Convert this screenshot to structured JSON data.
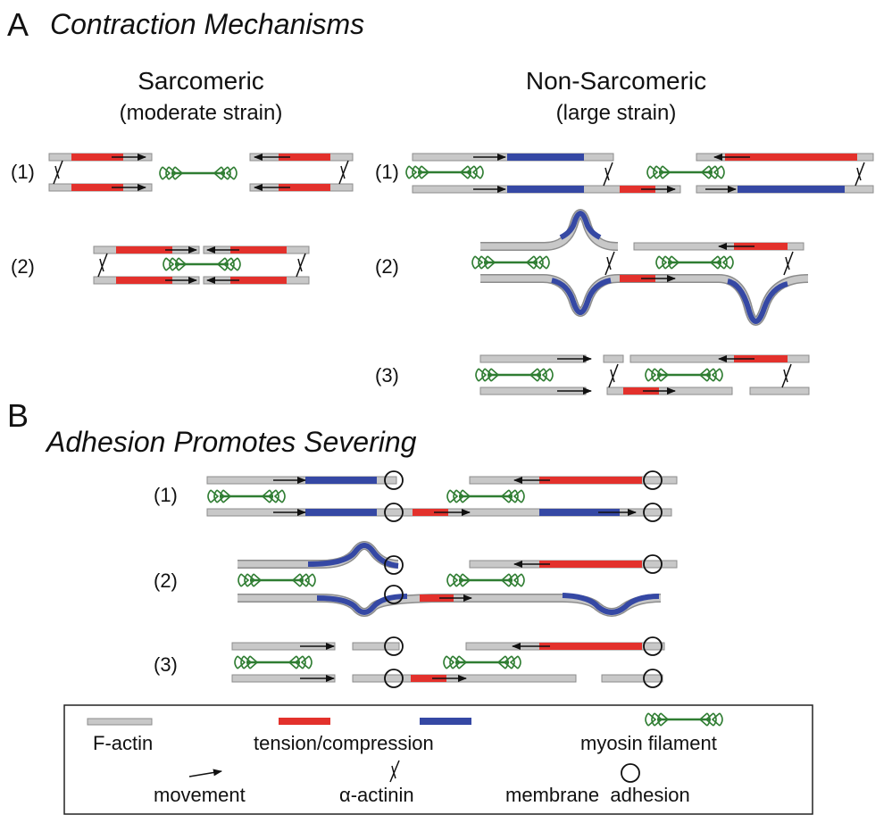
{
  "panel_a": {
    "letter": "A",
    "title": "Contraction Mechanisms",
    "sarcomeric": {
      "title": "Sarcomeric",
      "subtitle": "(moderate strain)"
    },
    "non_sarcomeric": {
      "title": "Non-Sarcomeric",
      "subtitle": "(large strain)"
    },
    "row_labels": [
      "(1)",
      "(2)",
      "(1)",
      "(2)",
      "(3)"
    ]
  },
  "panel_b": {
    "letter": "B",
    "title": "Adhesion Promotes Severing",
    "row_labels": [
      "(1)",
      "(2)",
      "(3)"
    ]
  },
  "legend": {
    "f_actin": "F-actin",
    "tension": "tension/compression",
    "myosin": "myosin filament",
    "movement": "movement",
    "alpha_actinin": "α-actinin",
    "adhesion": "membrane  adhesion"
  },
  "colors": {
    "actin": "#c8c8c8",
    "actin_edge": "#8c8c8c",
    "tension": "#e3312c",
    "compression": "#3548a4",
    "myosin_green": "#2f7d32"
  }
}
